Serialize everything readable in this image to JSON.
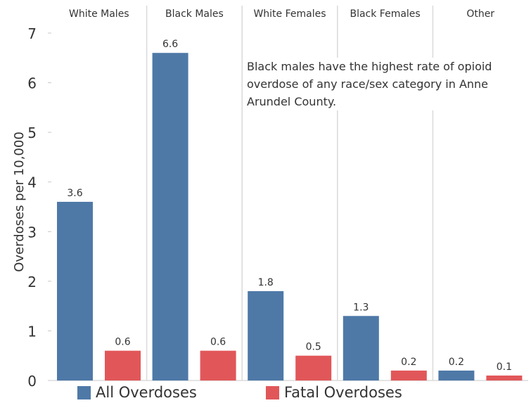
{
  "chart_data": {
    "type": "bar",
    "ylabel": "Overdoses per 10,000",
    "ylim": [
      0,
      7
    ],
    "yticks": [
      0,
      1,
      2,
      3,
      4,
      5,
      6,
      7
    ],
    "panels": [
      "White Males",
      "Black Males",
      "White Females",
      "Black Females",
      "Other"
    ],
    "series": [
      {
        "name": "All Overdoses",
        "color": "#4e79a7",
        "values": [
          3.6,
          6.6,
          1.8,
          1.3,
          0.2
        ]
      },
      {
        "name": "Fatal Overdoses",
        "color": "#e15759",
        "values": [
          0.6,
          0.6,
          0.5,
          0.2,
          0.1
        ]
      }
    ],
    "annotation": "Black males have the highest rate of opioid overdose of any race/sex category in Anne Arundel County.",
    "grid": false,
    "legend_position": "bottom"
  },
  "legend": {
    "items": [
      {
        "label": "All Overdoses",
        "color": "#4e79a7"
      },
      {
        "label": "Fatal Overdoses",
        "color": "#e15759"
      }
    ]
  }
}
